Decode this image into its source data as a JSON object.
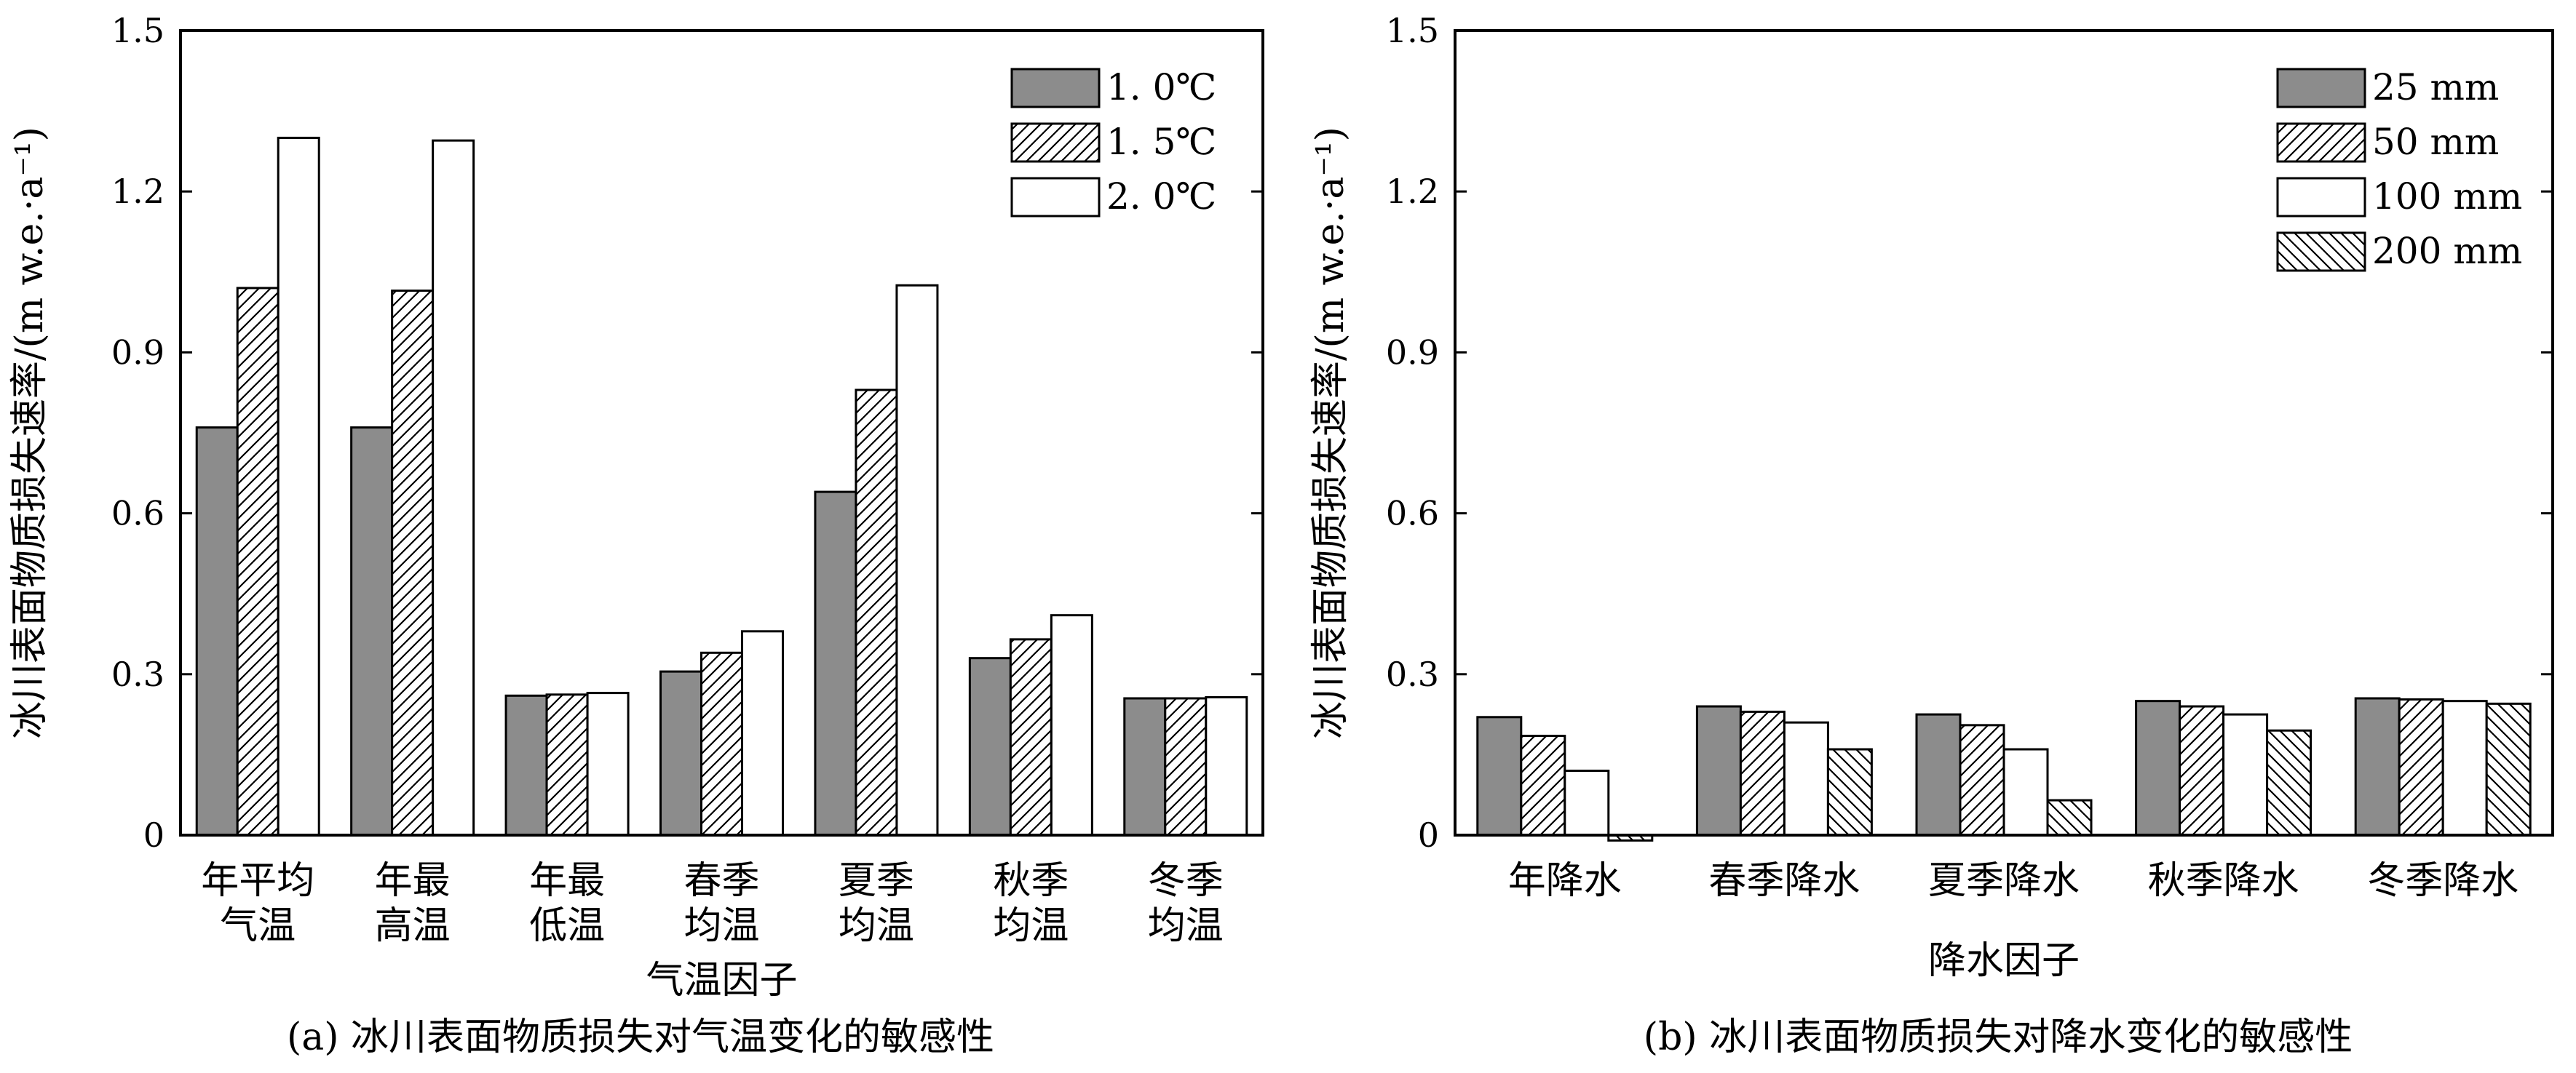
{
  "chart_data": [
    {
      "type": "bar",
      "xlabel": "气温因子",
      "ylabel": "冰川表面物质损失速率/(m w.e.·a⁻¹)",
      "caption": "(a) 冰川表面物质损失对气温变化的敏感性",
      "ylim": [
        0,
        1.5
      ],
      "yticks": [
        "0",
        "0.3",
        "0.6",
        "0.9",
        "1.2",
        "1.5"
      ],
      "categories": [
        [
          "年平均",
          "气温"
        ],
        [
          "年最",
          "高温"
        ],
        [
          "年最",
          "低温"
        ],
        [
          "春季",
          "均温"
        ],
        [
          "夏季",
          "均温"
        ],
        [
          "秋季",
          "均温"
        ],
        [
          "冬季",
          "均温"
        ]
      ],
      "legend_position": "top-right",
      "series": [
        {
          "name": "1. 0℃",
          "fill": "gray",
          "values": [
            0.76,
            0.76,
            0.26,
            0.305,
            0.64,
            0.33,
            0.255
          ]
        },
        {
          "name": "1. 5℃",
          "fill": "hatch-forward",
          "values": [
            1.02,
            1.015,
            0.262,
            0.34,
            0.83,
            0.365,
            0.255
          ]
        },
        {
          "name": "2. 0℃",
          "fill": "white",
          "values": [
            1.3,
            1.295,
            0.265,
            0.38,
            1.025,
            0.41,
            0.257
          ]
        }
      ]
    },
    {
      "type": "bar",
      "xlabel": "降水因子",
      "ylabel": "冰川表面物质损失速率/(m w.e.·a⁻¹)",
      "caption": "(b) 冰川表面物质损失对降水变化的敏感性",
      "ylim": [
        0,
        1.5
      ],
      "yticks": [
        "0",
        "0.3",
        "0.6",
        "0.9",
        "1.2",
        "1.5"
      ],
      "categories": [
        [
          "年降水"
        ],
        [
          "春季降水"
        ],
        [
          "夏季降水"
        ],
        [
          "秋季降水"
        ],
        [
          "冬季降水"
        ]
      ],
      "legend_position": "top-right",
      "series": [
        {
          "name": "25 mm",
          "fill": "gray",
          "values": [
            0.22,
            0.24,
            0.225,
            0.25,
            0.255
          ]
        },
        {
          "name": "50 mm",
          "fill": "hatch-forward",
          "values": [
            0.185,
            0.23,
            0.205,
            0.24,
            0.253
          ]
        },
        {
          "name": "100 mm",
          "fill": "white",
          "values": [
            0.12,
            0.21,
            0.16,
            0.225,
            0.25
          ]
        },
        {
          "name": "200 mm",
          "fill": "hatch-backward",
          "values": [
            -0.01,
            0.16,
            0.065,
            0.195,
            0.245
          ]
        }
      ]
    }
  ]
}
